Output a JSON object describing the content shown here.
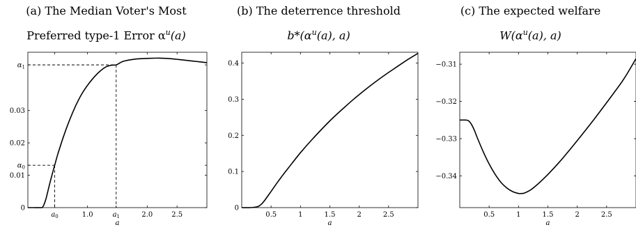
{
  "panels": [
    {
      "title_line1": "(a) The Median Voter's Most",
      "title_line2": "Preferred type-1 Error α",
      "title_line2_sup": "u",
      "title_line2_tail": "(a)",
      "chart_data": {
        "type": "line",
        "xlabel": "a",
        "ylabel": "",
        "xlim": [
          0,
          3
        ],
        "ylim": [
          0,
          0.048
        ],
        "xticks": [
          {
            "value": 0.45,
            "label": "a0",
            "label_main": "a",
            "label_sub": "0"
          },
          {
            "value": 1.0,
            "label": "1.0"
          },
          {
            "value": 1.48,
            "label": "a1",
            "label_main": "a",
            "label_sub": "1"
          },
          {
            "value": 2.0,
            "label": "2.0"
          },
          {
            "value": 2.5,
            "label": "2.5"
          }
        ],
        "yticks": [
          {
            "value": 0,
            "label": "0"
          },
          {
            "value": 0.01,
            "label": "0.01"
          },
          {
            "value": 0.0131,
            "label": "α0",
            "label_main": "α",
            "label_sub": "0"
          },
          {
            "value": 0.02,
            "label": "0.02"
          },
          {
            "value": 0.03,
            "label": "0.03"
          },
          {
            "value": 0.0441,
            "label": "α1",
            "label_main": "α",
            "label_sub": "1"
          }
        ],
        "reference_lines": [
          {
            "x": 0.45,
            "y": 0.0131
          },
          {
            "x": 1.48,
            "y": 0.0441
          }
        ],
        "series": [
          {
            "x": [
              0,
              0.1,
              0.2,
              0.25,
              0.3,
              0.35,
              0.4,
              0.45,
              0.5,
              0.6,
              0.7,
              0.8,
              0.9,
              1.0,
              1.1,
              1.2,
              1.3,
              1.4,
              1.48,
              1.6,
              1.8,
              2.0,
              2.2,
              2.4,
              2.6,
              2.8,
              3.0
            ],
            "y": [
              0,
              0,
              0,
              0.0002,
              0.0025,
              0.0062,
              0.0098,
              0.0131,
              0.0164,
              0.0221,
              0.0271,
              0.0314,
              0.035,
              0.0378,
              0.0401,
              0.042,
              0.0434,
              0.044,
              0.0441,
              0.0452,
              0.0459,
              0.0461,
              0.0462,
              0.046,
              0.0456,
              0.0452,
              0.0448
            ]
          }
        ]
      }
    },
    {
      "title_line1": "(b) The deterrence threshold",
      "title_line2": "b*(α",
      "title_line2_sup": "u",
      "title_line2_tail": "(a), a)",
      "chart_data": {
        "type": "line",
        "xlabel": "a",
        "ylabel": "",
        "xlim": [
          0,
          3
        ],
        "ylim": [
          0,
          0.43
        ],
        "xticks": [
          {
            "value": 0.5,
            "label": "0.5"
          },
          {
            "value": 1.0,
            "label": "1"
          },
          {
            "value": 1.5,
            "label": "1.5"
          },
          {
            "value": 2.0,
            "label": "2"
          },
          {
            "value": 2.5,
            "label": "2.5"
          }
        ],
        "yticks": [
          {
            "value": 0,
            "label": "0"
          },
          {
            "value": 0.1,
            "label": "0.1"
          },
          {
            "value": 0.2,
            "label": "0.2"
          },
          {
            "value": 0.3,
            "label": "0.3"
          },
          {
            "value": 0.4,
            "label": "0.4"
          }
        ],
        "series": [
          {
            "x": [
              0,
              0.15,
              0.25,
              0.3,
              0.35,
              0.4,
              0.5,
              0.6,
              0.7,
              0.8,
              1.0,
              1.2,
              1.5,
              1.8,
              2.0,
              2.3,
              2.5,
              2.8,
              3.0
            ],
            "y": [
              0,
              0,
              0.002,
              0.005,
              0.012,
              0.022,
              0.045,
              0.068,
              0.09,
              0.111,
              0.152,
              0.189,
              0.24,
              0.285,
              0.313,
              0.351,
              0.374,
              0.407,
              0.427
            ]
          }
        ]
      }
    },
    {
      "title_line1": "(c) The expected welfare",
      "title_line2": "W(α",
      "title_line2_sup": "u",
      "title_line2_tail": "(a), a)",
      "chart_data": {
        "type": "line",
        "xlabel": "a",
        "ylabel": "",
        "xlim": [
          0,
          3
        ],
        "ylim": [
          -0.3485,
          -0.3068
        ],
        "xticks": [
          {
            "value": 0.5,
            "label": "0.5"
          },
          {
            "value": 1.0,
            "label": "1"
          },
          {
            "value": 1.5,
            "label": "1.5"
          },
          {
            "value": 2.0,
            "label": "2"
          },
          {
            "value": 2.5,
            "label": "2.5"
          }
        ],
        "yticks": [
          {
            "value": -0.34,
            "label": "−0.34"
          },
          {
            "value": -0.33,
            "label": "−0.33"
          },
          {
            "value": -0.32,
            "label": "−0.32"
          },
          {
            "value": -0.31,
            "label": "−0.31"
          }
        ],
        "series": [
          {
            "x": [
              0,
              0.1,
              0.15,
              0.2,
              0.25,
              0.3,
              0.4,
              0.5,
              0.6,
              0.7,
              0.8,
              0.9,
              1.0,
              1.05,
              1.1,
              1.2,
              1.3,
              1.5,
              1.7,
              2.0,
              2.3,
              2.6,
              2.8,
              3.0
            ],
            "y": [
              -0.325,
              -0.325,
              -0.3252,
              -0.3262,
              -0.3278,
              -0.3298,
              -0.3335,
              -0.3368,
              -0.3395,
              -0.3417,
              -0.3432,
              -0.3442,
              -0.3447,
              -0.3447,
              -0.3446,
              -0.3438,
              -0.3426,
              -0.3396,
              -0.3362,
              -0.3305,
              -0.3245,
              -0.3182,
              -0.3138,
              -0.3085
            ]
          }
        ]
      }
    }
  ]
}
